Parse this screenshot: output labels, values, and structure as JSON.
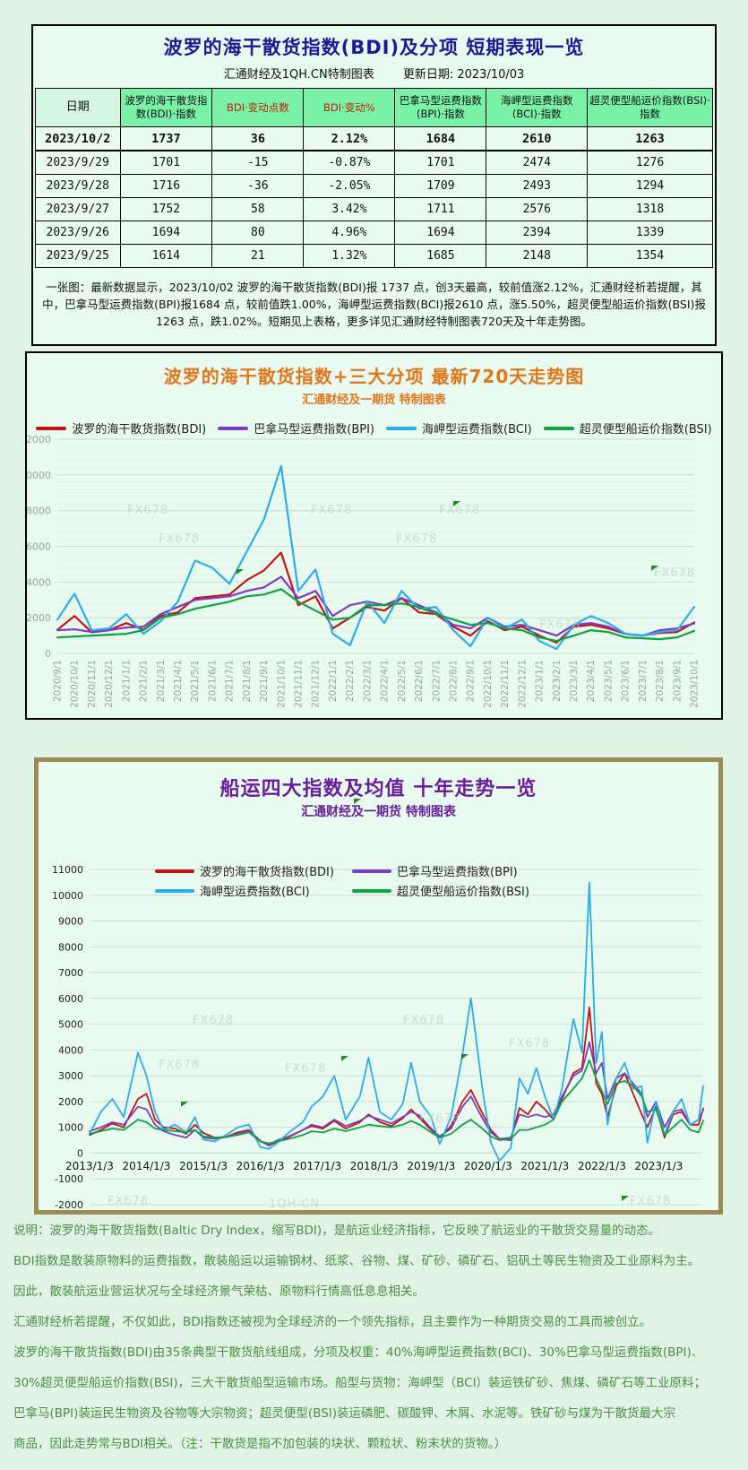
{
  "watermarks": {
    "brand": "FX678",
    "site": "1QH.CN"
  },
  "top_table": {
    "title": "波罗的海干散货指数(BDI)及分项 短期表现一览",
    "subtitle_left": "汇通财经及1QH.CN特制图表",
    "subtitle_right": "更新日期: 2023/10/03",
    "headers": [
      "日期",
      "波罗的海干散货指数(BDI)·指数",
      "BDI·变动点数",
      "BDI·变动%",
      "巴拿马型运费指数(BPI)·指数",
      "海岬型运费指数(BCI)·指数",
      "超灵便型船运价指数(BSI)·指数"
    ],
    "rows": [
      [
        "2023/10/2",
        "1737",
        "36",
        "2.12%",
        "1684",
        "2610",
        "1263"
      ],
      [
        "2023/9/29",
        "1701",
        "-15",
        "-0.87%",
        "1701",
        "2474",
        "1276"
      ],
      [
        "2023/9/28",
        "1716",
        "-36",
        "-2.05%",
        "1709",
        "2493",
        "1294"
      ],
      [
        "2023/9/27",
        "1752",
        "58",
        "3.42%",
        "1711",
        "2576",
        "1318"
      ],
      [
        "2023/9/26",
        "1694",
        "80",
        "4.96%",
        "1694",
        "2394",
        "1339"
      ],
      [
        "2023/9/25",
        "1614",
        "21",
        "1.32%",
        "1685",
        "2148",
        "1354"
      ]
    ],
    "note": "一张图：最新数据显示，2023/10/02 波罗的海干散货指数(BDI)报 1737 点，创3天最高，较前值涨2.12%，汇通财经析若提醒，其中，巴拿马型运费指数(BPI)报1684 点，较前值跌1.00%，海岬型运费指数(BCI)报2610 点，涨5.50%，超灵便型船运价指数(BSI)报1263 点，跌1.02%。短期见上表格，更多详见汇通财经特制图表720天及十年走势图。"
  },
  "chart_data": [
    {
      "type": "line",
      "title": "波罗的海干散货指数+三大分项 最新720天走势图",
      "subtitle": "汇通财经及一期货 特制图表",
      "legend_position": "top",
      "grid": true,
      "ylim": [
        0,
        12000
      ],
      "ystep": 2000,
      "minor_step": 400,
      "x_labels": [
        "2020/9/1",
        "2020/10/1",
        "2020/11/1",
        "2020/12/1",
        "2021/1/1",
        "2021/2/1",
        "2021/3/1",
        "2021/4/1",
        "2021/5/1",
        "2021/6/1",
        "2021/7/1",
        "2021/8/1",
        "2021/9/1",
        "2021/10/1",
        "2021/11/1",
        "2021/12/1",
        "2022/1/1",
        "2022/2/1",
        "2022/3/1",
        "2022/4/1",
        "2022/5/1",
        "2022/6/1",
        "2022/7/1",
        "2022/8/1",
        "2022/9/1",
        "2022/10/1",
        "2022/11/1",
        "2022/12/1",
        "2023/1/1",
        "2023/2/1",
        "2023/3/1",
        "2023/4/1",
        "2023/5/1",
        "2023/6/1",
        "2023/7/1",
        "2023/8/1",
        "2023/9/1",
        "2023/10/1"
      ],
      "series": [
        {
          "name": "波罗的海干散货指数(BDI)",
          "color": "#c41414",
          "values": [
            1320,
            2097,
            1185,
            1300,
            1700,
            1320,
            2100,
            2300,
            3100,
            3200,
            3300,
            4100,
            4650,
            5650,
            2700,
            3200,
            1400,
            2000,
            2600,
            2400,
            3100,
            2300,
            2200,
            1500,
            1000,
            1800,
            1300,
            1500,
            1000,
            600,
            1500,
            1600,
            1400,
            1100,
            1000,
            1150,
            1200,
            1737
          ]
        },
        {
          "name": "巴拿马型运费指数(BPI)",
          "color": "#7c3cc4",
          "values": [
            1300,
            1350,
            1200,
            1300,
            1450,
            1500,
            2200,
            2600,
            3000,
            3100,
            3200,
            3500,
            3700,
            4300,
            3100,
            3500,
            2100,
            2700,
            2900,
            2700,
            3100,
            2700,
            2300,
            1600,
            1400,
            2000,
            1500,
            1600,
            1300,
            1000,
            1600,
            1700,
            1500,
            1100,
            1000,
            1300,
            1400,
            1684
          ]
        },
        {
          "name": "海岬型运费指数(BCI)",
          "color": "#2bacec",
          "values": [
            1900,
            3350,
            1300,
            1400,
            2200,
            1100,
            1800,
            2900,
            5200,
            4800,
            3900,
            5700,
            7500,
            10500,
            3500,
            4700,
            1100,
            460,
            2900,
            1700,
            3500,
            2500,
            2600,
            1300,
            400,
            2000,
            1400,
            1900,
            700,
            250,
            1600,
            2100,
            1700,
            1100,
            1000,
            1200,
            1300,
            2610
          ]
        },
        {
          "name": "超灵便型船运价指数(BSI)",
          "color": "#10a344",
          "values": [
            900,
            950,
            1000,
            1050,
            1100,
            1300,
            2000,
            2200,
            2500,
            2700,
            2900,
            3200,
            3300,
            3600,
            2900,
            2400,
            1900,
            2000,
            2700,
            2700,
            2800,
            2600,
            2200,
            1900,
            1600,
            1700,
            1400,
            1300,
            900,
            700,
            1000,
            1300,
            1200,
            900,
            850,
            800,
            900,
            1263
          ]
        }
      ]
    },
    {
      "type": "line",
      "title": "船运四大指数及均值 十年走势一览",
      "subtitle": "汇通财经及一期货 特制图表",
      "legend_position": "top",
      "grid": true,
      "ylim": [
        -2000,
        11000
      ],
      "ystep": 1000,
      "x": [
        2013.0,
        2013.2,
        2013.4,
        2013.6,
        2013.85,
        2014.0,
        2014.15,
        2014.3,
        2014.5,
        2014.7,
        2014.85,
        2015.0,
        2015.2,
        2015.4,
        2015.6,
        2015.8,
        2016.0,
        2016.15,
        2016.3,
        2016.5,
        2016.75,
        2016.9,
        2017.1,
        2017.3,
        2017.5,
        2017.75,
        2017.9,
        2018.1,
        2018.3,
        2018.5,
        2018.65,
        2018.8,
        2019.0,
        2019.15,
        2019.35,
        2019.55,
        2019.7,
        2019.9,
        2020.05,
        2020.2,
        2020.4,
        2020.55,
        2020.7,
        2020.85,
        2021.0,
        2021.15,
        2021.3,
        2021.5,
        2021.65,
        2021.78,
        2021.9,
        2022.0,
        2022.1,
        2022.25,
        2022.4,
        2022.55,
        2022.7,
        2022.8,
        2022.95,
        2023.1,
        2023.25,
        2023.4,
        2023.55,
        2023.7,
        2023.78
      ],
      "x_ticks": [
        2013,
        2014,
        2015,
        2016,
        2017,
        2018,
        2019,
        2020,
        2021,
        2022,
        2023
      ],
      "x_tick_labels": [
        "2013/1/3",
        "2014/1/3",
        "2015/1/3",
        "2016/1/3",
        "2017/1/3",
        "2018/1/3",
        "2019/1/3",
        "2020/1/3",
        "2021/1/3",
        "2022/1/3",
        "2023/1/3"
      ],
      "series": [
        {
          "name": "波罗的海干散货指数(BDI)",
          "color": "#c41414",
          "values": [
            700,
            900,
            1150,
            1000,
            2100,
            2300,
            1300,
            1000,
            950,
            750,
            1100,
            780,
            600,
            630,
            800,
            900,
            470,
            290,
            450,
            620,
            900,
            1050,
            950,
            1250,
            950,
            1200,
            1500,
            1200,
            1050,
            1350,
            1700,
            1350,
            900,
            600,
            1050,
            2000,
            2450,
            1550,
            900,
            550,
            500,
            1750,
            1500,
            2000,
            1700,
            1300,
            2100,
            3100,
            3300,
            5650,
            2700,
            2300,
            1400,
            2600,
            3100,
            2300,
            1500,
            1000,
            1800,
            600,
            1500,
            1600,
            1100,
            1100,
            1737
          ]
        },
        {
          "name": "巴拿马型运费指数(BPI)",
          "color": "#7c3cc4",
          "values": [
            850,
            1000,
            1200,
            1100,
            1800,
            1700,
            1100,
            850,
            700,
            600,
            900,
            600,
            550,
            620,
            750,
            850,
            450,
            320,
            500,
            650,
            900,
            1100,
            1000,
            1300,
            1050,
            1250,
            1450,
            1300,
            1150,
            1400,
            1600,
            1450,
            950,
            650,
            950,
            1800,
            2200,
            1350,
            800,
            550,
            600,
            1500,
            1400,
            1500,
            1400,
            1500,
            2200,
            3000,
            3200,
            4300,
            3100,
            3500,
            2100,
            2900,
            3100,
            2700,
            2300,
            1400,
            2000,
            1000,
            1600,
            1700,
            1100,
            1300,
            1684
          ]
        },
        {
          "name": "海岬型运费指数(BCI)",
          "color": "#2bacec",
          "values": [
            750,
            1600,
            2100,
            1400,
            3900,
            3000,
            1600,
            900,
            1100,
            800,
            1400,
            520,
            450,
            700,
            1000,
            1100,
            230,
            160,
            400,
            800,
            1200,
            1800,
            2200,
            3000,
            1300,
            2200,
            3700,
            1600,
            1300,
            1900,
            3500,
            2000,
            1400,
            350,
            1400,
            3800,
            6000,
            2500,
            400,
            -300,
            200,
            2900,
            2300,
            3300,
            2200,
            1300,
            2500,
            5200,
            3900,
            10500,
            3500,
            4700,
            1100,
            2900,
            3500,
            2500,
            2600,
            400,
            2000,
            700,
            1600,
            2100,
            1100,
            1300,
            2610
          ]
        },
        {
          "name": "超灵便型船运价指数(BSI)",
          "color": "#10a344",
          "values": [
            750,
            850,
            950,
            900,
            1300,
            1200,
            950,
            900,
            850,
            800,
            900,
            650,
            600,
            620,
            700,
            800,
            450,
            380,
            450,
            550,
            700,
            850,
            800,
            950,
            850,
            1000,
            1100,
            1050,
            1000,
            1100,
            1250,
            1100,
            800,
            600,
            750,
            1100,
            1300,
            950,
            650,
            500,
            550,
            900,
            900,
            1000,
            1100,
            1300,
            2000,
            2500,
            2900,
            3600,
            2900,
            2400,
            1900,
            2700,
            2800,
            2600,
            2200,
            1600,
            1700,
            700,
            1000,
            1300,
            900,
            800,
            1263
          ]
        }
      ]
    }
  ],
  "footer": {
    "lines": [
      "说明：波罗的海干散货指数(Baltic Dry Index，缩写BDI)，是航运业经济指标，它反映了航运业的干散货交易量的动态。",
      "BDI指数是散装原物料的运费指数，散装船运以运输钢材、纸浆、谷物、煤、矿砂、磷矿石、铝矾土等民生物资及工业原料为主。",
      "因此，散装航运业营运状况与全球经济景气荣枯、原物料行情高低息息相关。",
      "汇通财经析若提醒，不仅如此，BDI指数还被视为全球经济的一个领先指标，且主要作为一种期货交易的工具而被创立。",
      "波罗的海干散货指数(BDI)由35条典型干散货航线组成，分项及权重：40%海岬型运费指数(BCI)、30%巴拿马型运费指数(BPI)、",
      "30%超灵便型船运价指数(BSI)，三大干散货船型运输市场。船型与货物：海岬型（BCI）装运铁矿砂、焦煤、磷矿石等工业原料；",
      "巴拿马(BPI)装运民生物资及谷物等大宗物资；超灵便型(BSI)装运磷肥、碳酸钾、木屑、水泥等。铁矿砂与煤为干散货最大宗",
      "商品，因此走势常与BDI相关。（注：干散货是指不加包装的块状、颗粒状、粉末状的货物。）"
    ]
  }
}
